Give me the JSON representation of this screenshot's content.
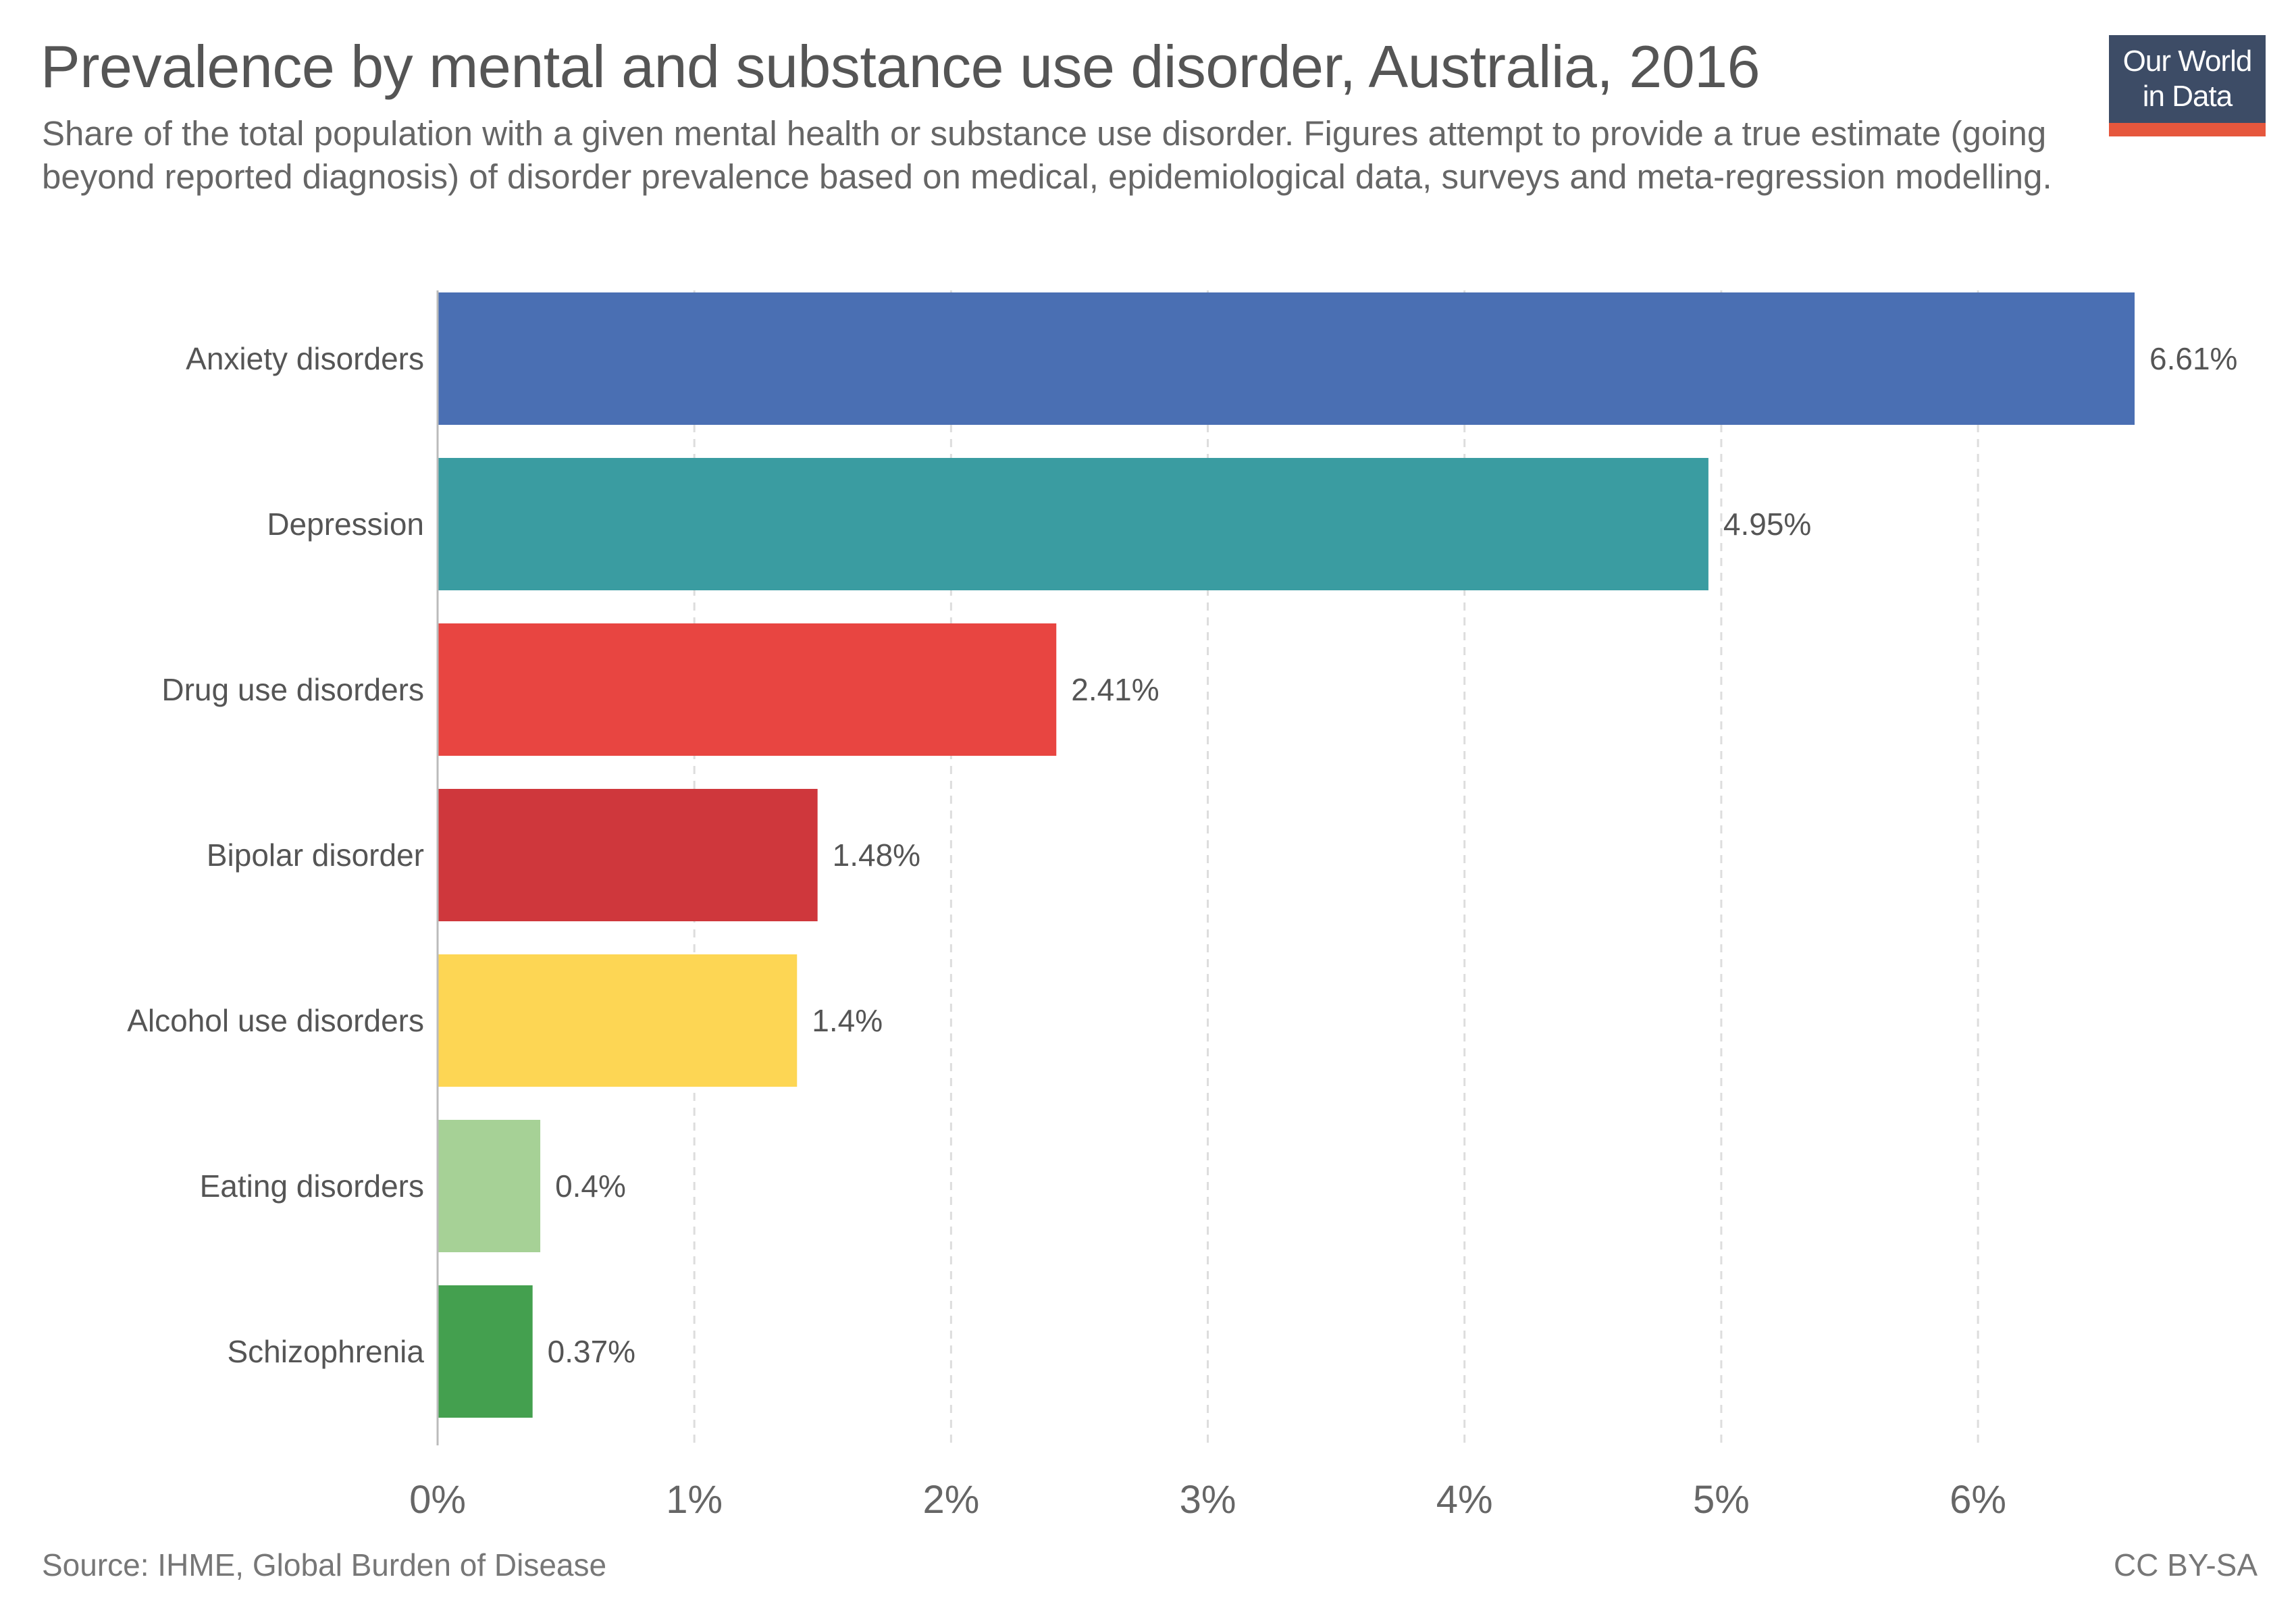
{
  "header": {
    "title": "Prevalence by mental and substance use disorder, Australia, 2016",
    "subtitle": "Share of the total population with a given mental health or substance use disorder. Figures attempt to provide a true estimate (going beyond reported diagnosis) of disorder prevalence based on medical, epidemiological data, surveys and meta-regression modelling."
  },
  "logo": {
    "line1": "Our World",
    "line2": "in Data"
  },
  "footer": {
    "source": "Source: IHME, Global Burden of Disease",
    "license": "CC BY-SA"
  },
  "chart_data": {
    "type": "bar",
    "orientation": "horizontal",
    "title": "Prevalence by mental and substance use disorder, Australia, 2016",
    "categories": [
      "Anxiety disorders",
      "Depression",
      "Drug use disorders",
      "Bipolar disorder",
      "Alcohol use disorders",
      "Eating disorders",
      "Schizophrenia"
    ],
    "values": [
      6.61,
      4.95,
      2.41,
      1.48,
      1.4,
      0.4,
      0.37
    ],
    "value_labels": [
      "6.61%",
      "4.95%",
      "2.41%",
      "1.48%",
      "1.4%",
      "0.4%",
      "0.37%"
    ],
    "colors": [
      "#4a6fb3",
      "#3a9ca1",
      "#e84541",
      "#cf373c",
      "#fdd654",
      "#a6d196",
      "#44a04f"
    ],
    "xlim": [
      0,
      6.61
    ],
    "xticks": [
      0,
      1,
      2,
      3,
      4,
      5,
      6
    ],
    "xtick_labels": [
      "0%",
      "1%",
      "2%",
      "3%",
      "4%",
      "5%",
      "6%"
    ],
    "xlabel": "",
    "ylabel": "",
    "grid": true
  }
}
